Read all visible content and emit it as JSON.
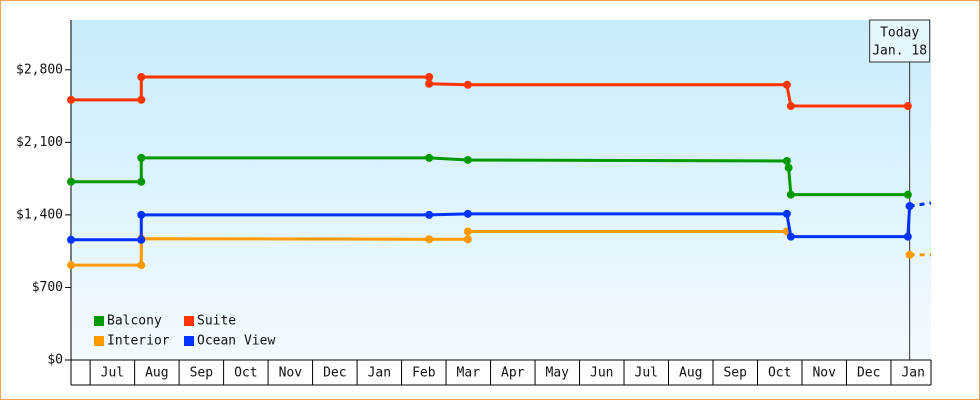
{
  "chart_data": {
    "type": "line",
    "step": true,
    "legend": "bottom-left",
    "xlim": [
      0.57,
      19.9
    ],
    "xticks": [
      {
        "value": 1.5,
        "label": "Jul"
      },
      {
        "value": 2.5,
        "label": "Aug"
      },
      {
        "value": 3.5,
        "label": "Sep"
      },
      {
        "value": 4.5,
        "label": "Oct"
      },
      {
        "value": 5.5,
        "label": "Nov"
      },
      {
        "value": 6.5,
        "label": "Dec"
      },
      {
        "value": 7.5,
        "label": "Jan"
      },
      {
        "value": 8.5,
        "label": "Feb"
      },
      {
        "value": 9.5,
        "label": "Mar"
      },
      {
        "value": 10.5,
        "label": "Apr"
      },
      {
        "value": 11.5,
        "label": "May"
      },
      {
        "value": 12.5,
        "label": "Jun"
      },
      {
        "value": 13.5,
        "label": "Jul"
      },
      {
        "value": 14.5,
        "label": "Aug"
      },
      {
        "value": 15.5,
        "label": "Sep"
      },
      {
        "value": 16.5,
        "label": "Oct"
      },
      {
        "value": 17.5,
        "label": "Nov"
      },
      {
        "value": 18.5,
        "label": "Dec"
      },
      {
        "value": 19.5,
        "label": "Jan"
      }
    ],
    "ylim": [
      0,
      3280
    ],
    "yticks": [
      {
        "value": 0,
        "label": "$0"
      },
      {
        "value": 700,
        "label": "$700"
      },
      {
        "value": 1400,
        "label": "$1,400"
      },
      {
        "value": 2100,
        "label": "$2,100"
      },
      {
        "value": 2800,
        "label": "$2,800"
      }
    ],
    "annotation": {
      "x": 19.42,
      "lines": [
        "Today",
        "Jan. 18"
      ]
    },
    "series": [
      {
        "name": "Balcony",
        "color": "#009900",
        "x": [
          0.57,
          2.15,
          2.15,
          8.62,
          9.49,
          16.66,
          16.7,
          16.75,
          19.38
        ],
        "values": [
          1720,
          1720,
          1950,
          1950,
          1930,
          1920,
          1855,
          1595,
          1595
        ]
      },
      {
        "name": "Suite",
        "color": "#ff3300",
        "x": [
          0.57,
          2.15,
          2.15,
          8.62,
          8.62,
          9.49,
          16.66,
          16.75,
          19.38
        ],
        "values": [
          2510,
          2510,
          2730,
          2730,
          2665,
          2655,
          2655,
          2450,
          2450
        ]
      },
      {
        "name": "Interior",
        "color": "#ff9900",
        "x": [
          0.57,
          2.15,
          2.15,
          8.62,
          9.49,
          9.49,
          16.66
        ],
        "values": [
          915,
          915,
          1170,
          1165,
          1165,
          1240,
          1240
        ],
        "projected_x": [
          19.42,
          19.9
        ],
        "projected_values": [
          1015,
          1015
        ]
      },
      {
        "name": "Ocean View",
        "color": "#0033ff",
        "x": [
          0.57,
          2.15,
          2.15,
          8.62,
          9.49,
          16.66,
          16.75,
          19.38,
          19.42
        ],
        "values": [
          1160,
          1160,
          1400,
          1400,
          1410,
          1410,
          1190,
          1190,
          1485
        ],
        "projected_x": [
          19.42,
          19.9
        ],
        "projected_values": [
          1485,
          1515
        ]
      }
    ]
  }
}
